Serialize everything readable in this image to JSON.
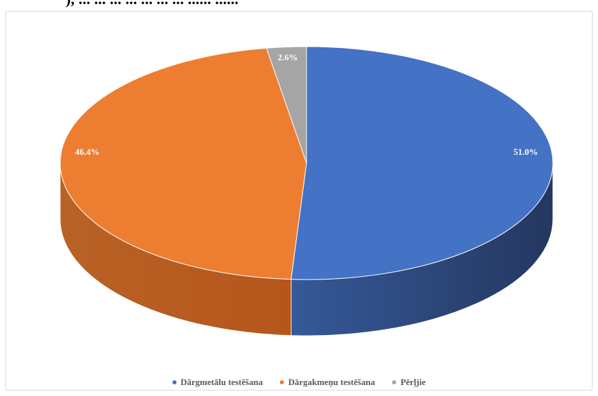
{
  "header": {
    "cropped_text": "), ... ...  ... ... ... ... ... ...... ......"
  },
  "chart_data": {
    "type": "pie",
    "title": "",
    "is_3d": true,
    "slices": [
      {
        "label": "Dārgmetālu testēšana",
        "value": 51.0,
        "display": "51.0%",
        "color": "#4472c4",
        "side_color": "#24375f"
      },
      {
        "label": "Dārgakmeņu testēšana",
        "value": 46.4,
        "display": "46.4%",
        "color": "#ed7d31",
        "side_color": "#b6561c"
      },
      {
        "label": "Pērļjie",
        "value": 2.6,
        "display": "2.6%",
        "color": "#a5a5a5",
        "side_color": "#7a7a7a"
      }
    ],
    "legend_position": "bottom",
    "data_label_color": "#ffffff"
  }
}
